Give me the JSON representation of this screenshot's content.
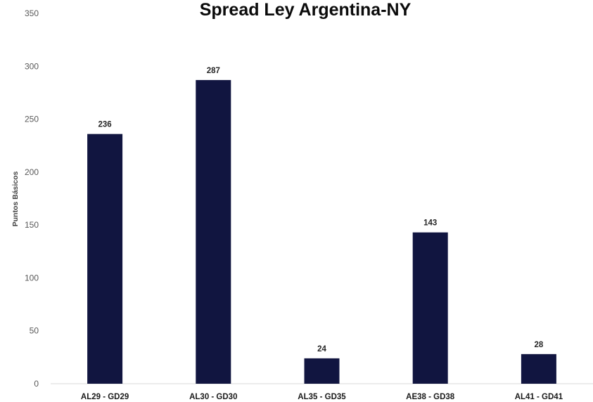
{
  "chart_data": {
    "type": "bar",
    "title": "Spread Ley Argentina-NY",
    "xlabel": "",
    "ylabel": "Puntos Básicos",
    "categories": [
      "AL29 - GD29",
      "AL30 - GD30",
      "AL35 - GD35",
      "AE38 - GD38",
      "AL41 - GD41"
    ],
    "values": [
      236,
      287,
      24,
      143,
      28
    ],
    "ylim": [
      0,
      350
    ],
    "yticks": [
      0,
      50,
      100,
      150,
      200,
      250,
      300,
      350
    ],
    "grid": false,
    "legend": "none",
    "bar_color": "#111540",
    "data_labels": true
  }
}
